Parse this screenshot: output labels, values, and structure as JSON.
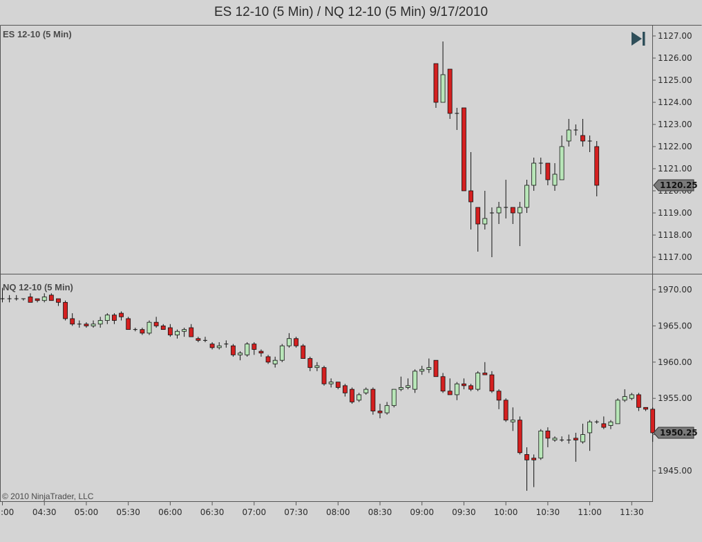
{
  "window": {
    "title": "ES 12-10 (5 Min) / NQ 12-10 (5 Min)  9/17/2010",
    "copyright": "© 2010 NinjaTrader, LLC",
    "go_to_end_icon": "skip-to-end-icon"
  },
  "colors": {
    "background": "#d4d4d4",
    "up": "#b8e6b8",
    "down": "#d42020",
    "wick": "#111111",
    "frame": "#555555"
  },
  "chart_data": [
    {
      "type": "candlestick",
      "panel_label": "ES 12-10 (5 Min)",
      "last_price": "1120.25",
      "ylim": [
        1116.5,
        1127.5
      ],
      "yticks": [
        "1117.00",
        "1118.00",
        "1119.00",
        "1120.00",
        "1121.00",
        "1122.00",
        "1123.00",
        "1124.00",
        "1125.00",
        "1126.00",
        "1127.00"
      ],
      "first_bar_index": 62,
      "bars": [
        [
          1125.75,
          1125.75,
          1123.75,
          1124.0
        ],
        [
          1124.0,
          1126.75,
          1124.0,
          1125.25
        ],
        [
          1125.5,
          1125.5,
          1123.25,
          1123.5
        ],
        [
          1123.5,
          1123.75,
          1122.75,
          1123.5
        ],
        [
          1123.75,
          1123.75,
          1120.0,
          1120.0
        ],
        [
          1120.0,
          1121.75,
          1118.25,
          1119.5
        ],
        [
          1119.25,
          1119.25,
          1117.25,
          1118.5
        ],
        [
          1118.5,
          1120.0,
          1118.25,
          1118.75
        ],
        [
          1119.0,
          1119.25,
          1117.0,
          1119.0
        ],
        [
          1119.0,
          1119.5,
          1118.5,
          1119.25
        ],
        [
          1119.25,
          1120.5,
          1118.75,
          1119.25
        ],
        [
          1119.25,
          1119.25,
          1118.5,
          1119.0
        ],
        [
          1119.0,
          1119.5,
          1117.5,
          1119.25
        ],
        [
          1119.25,
          1120.5,
          1119.0,
          1120.25
        ],
        [
          1120.25,
          1121.5,
          1120.0,
          1121.25
        ],
        [
          1121.25,
          1121.5,
          1120.75,
          1121.25
        ],
        [
          1121.25,
          1121.25,
          1120.25,
          1120.5
        ],
        [
          1120.25,
          1121.25,
          1120.0,
          1120.75
        ],
        [
          1120.5,
          1122.5,
          1120.5,
          1122.0
        ],
        [
          1122.25,
          1123.25,
          1122.0,
          1122.75
        ],
        [
          1122.75,
          1123.0,
          1122.5,
          1122.75
        ],
        [
          1122.5,
          1123.25,
          1122.0,
          1122.25
        ],
        [
          1122.25,
          1122.5,
          1121.75,
          1122.25
        ],
        [
          1122.0,
          1122.25,
          1119.75,
          1120.25
        ]
      ]
    },
    {
      "type": "candlestick",
      "panel_label": "NQ 12-10 (5 Min)",
      "last_price": "1950.25",
      "ylim": [
        1941.5,
        1971.0
      ],
      "yticks": [
        "1945.00",
        "1950.00",
        "1955.00",
        "1960.00",
        "1965.00",
        "1970.00"
      ],
      "first_bar_index": 0,
      "bars": [
        [
          1968.75,
          1970.25,
          1968.25,
          1968.75
        ],
        [
          1968.75,
          1969.25,
          1968.25,
          1968.75
        ],
        [
          1968.75,
          1969.25,
          1968.5,
          1968.75
        ],
        [
          1968.75,
          1968.75,
          1968.5,
          1968.75
        ],
        [
          1969.0,
          1969.5,
          1968.25,
          1968.25
        ],
        [
          1968.75,
          1968.75,
          1968.25,
          1968.5
        ],
        [
          1968.5,
          1969.5,
          1968.25,
          1969.0
        ],
        [
          1969.25,
          1969.5,
          1968.5,
          1968.5
        ],
        [
          1968.75,
          1968.75,
          1967.75,
          1968.25
        ],
        [
          1968.25,
          1968.5,
          1965.75,
          1966.0
        ],
        [
          1966.0,
          1966.75,
          1965.0,
          1965.25
        ],
        [
          1965.25,
          1965.75,
          1964.75,
          1965.25
        ],
        [
          1965.25,
          1965.5,
          1964.75,
          1965.0
        ],
        [
          1965.0,
          1965.75,
          1964.75,
          1965.25
        ],
        [
          1965.25,
          1966.25,
          1964.75,
          1965.75
        ],
        [
          1965.75,
          1966.75,
          1965.25,
          1966.5
        ],
        [
          1966.5,
          1966.75,
          1965.25,
          1965.75
        ],
        [
          1966.75,
          1967.0,
          1965.75,
          1966.25
        ],
        [
          1966.0,
          1966.25,
          1964.5,
          1964.5
        ],
        [
          1964.5,
          1964.75,
          1964.25,
          1964.5
        ],
        [
          1964.5,
          1964.75,
          1963.75,
          1964.0
        ],
        [
          1964.0,
          1965.75,
          1963.75,
          1965.5
        ],
        [
          1965.5,
          1966.25,
          1964.75,
          1965.0
        ],
        [
          1965.0,
          1965.25,
          1964.5,
          1964.5
        ],
        [
          1964.75,
          1965.25,
          1963.5,
          1963.75
        ],
        [
          1963.75,
          1964.5,
          1963.25,
          1964.25
        ],
        [
          1964.25,
          1964.75,
          1963.5,
          1964.5
        ],
        [
          1964.75,
          1965.25,
          1963.5,
          1963.5
        ],
        [
          1963.25,
          1963.5,
          1962.75,
          1963.0
        ],
        [
          1963.0,
          1963.5,
          1962.75,
          1963.0
        ],
        [
          1962.5,
          1962.75,
          1961.75,
          1962.0
        ],
        [
          1962.0,
          1962.75,
          1961.75,
          1962.25
        ],
        [
          1962.5,
          1963.0,
          1962.0,
          1962.5
        ],
        [
          1962.25,
          1962.5,
          1960.75,
          1961.0
        ],
        [
          1961.0,
          1961.5,
          1960.25,
          1961.25
        ],
        [
          1961.0,
          1962.75,
          1960.75,
          1962.5
        ],
        [
          1962.5,
          1962.75,
          1961.0,
          1961.75
        ],
        [
          1961.5,
          1961.75,
          1960.75,
          1961.25
        ],
        [
          1960.75,
          1961.0,
          1959.75,
          1960.0
        ],
        [
          1959.75,
          1960.75,
          1959.25,
          1960.25
        ],
        [
          1960.25,
          1962.5,
          1960.0,
          1962.25
        ],
        [
          1962.25,
          1964.0,
          1962.0,
          1963.25
        ],
        [
          1963.25,
          1963.5,
          1962.0,
          1962.25
        ],
        [
          1962.25,
          1962.5,
          1960.5,
          1960.5
        ],
        [
          1960.5,
          1960.75,
          1958.75,
          1959.25
        ],
        [
          1959.25,
          1960.0,
          1958.75,
          1959.5
        ],
        [
          1959.25,
          1959.5,
          1956.75,
          1957.0
        ],
        [
          1957.0,
          1957.75,
          1956.5,
          1957.25
        ],
        [
          1957.25,
          1957.25,
          1956.25,
          1956.5
        ],
        [
          1956.75,
          1957.0,
          1955.25,
          1955.75
        ],
        [
          1956.25,
          1956.5,
          1954.25,
          1954.5
        ],
        [
          1954.75,
          1955.75,
          1954.5,
          1955.5
        ],
        [
          1955.75,
          1956.5,
          1955.5,
          1956.25
        ],
        [
          1956.25,
          1956.5,
          1952.75,
          1953.25
        ],
        [
          1953.25,
          1954.25,
          1952.25,
          1953.0
        ],
        [
          1953.0,
          1954.5,
          1952.75,
          1954.0
        ],
        [
          1954.0,
          1956.25,
          1953.75,
          1956.25
        ],
        [
          1956.25,
          1958.0,
          1956.0,
          1956.5
        ],
        [
          1956.5,
          1957.75,
          1956.25,
          1956.75
        ],
        [
          1956.25,
          1959.0,
          1955.75,
          1958.75
        ],
        [
          1958.75,
          1959.5,
          1958.25,
          1959.0
        ],
        [
          1959.0,
          1960.5,
          1958.5,
          1959.25
        ],
        [
          1960.25,
          1960.25,
          1958.0,
          1958.0
        ],
        [
          1958.0,
          1958.5,
          1955.75,
          1956.0
        ],
        [
          1956.0,
          1957.75,
          1955.5,
          1955.5
        ],
        [
          1955.5,
          1957.25,
          1954.75,
          1957.0
        ],
        [
          1957.0,
          1957.75,
          1956.25,
          1956.75
        ],
        [
          1956.75,
          1957.0,
          1956.0,
          1956.25
        ],
        [
          1956.25,
          1958.75,
          1956.0,
          1958.5
        ],
        [
          1958.5,
          1960.0,
          1958.25,
          1958.25
        ],
        [
          1958.25,
          1958.75,
          1955.75,
          1956.0
        ],
        [
          1956.0,
          1956.25,
          1953.5,
          1954.75
        ],
        [
          1954.75,
          1955.0,
          1951.75,
          1952.0
        ],
        [
          1951.75,
          1953.75,
          1950.5,
          1952.0
        ],
        [
          1952.0,
          1952.5,
          1947.25,
          1947.5
        ],
        [
          1947.25,
          1948.25,
          1942.25,
          1946.5
        ],
        [
          1946.75,
          1947.25,
          1942.75,
          1946.5
        ],
        [
          1946.75,
          1950.75,
          1946.5,
          1950.5
        ],
        [
          1950.5,
          1951.0,
          1948.25,
          1949.5
        ],
        [
          1949.25,
          1949.75,
          1949.0,
          1949.5
        ],
        [
          1949.25,
          1949.75,
          1949.0,
          1949.25
        ],
        [
          1949.25,
          1950.0,
          1948.75,
          1949.25
        ],
        [
          1949.5,
          1950.25,
          1946.25,
          1949.25
        ],
        [
          1949.0,
          1951.5,
          1948.75,
          1950.0
        ],
        [
          1950.25,
          1952.0,
          1947.75,
          1951.75
        ],
        [
          1951.75,
          1952.0,
          1951.5,
          1951.75
        ],
        [
          1951.5,
          1952.5,
          1950.75,
          1951.0
        ],
        [
          1951.25,
          1952.0,
          1950.75,
          1951.75
        ],
        [
          1951.5,
          1955.0,
          1951.5,
          1954.75
        ],
        [
          1954.75,
          1956.25,
          1954.5,
          1955.25
        ],
        [
          1955.0,
          1955.75,
          1954.75,
          1955.5
        ],
        [
          1955.5,
          1955.75,
          1953.25,
          1953.75
        ],
        [
          1953.75,
          1953.75,
          1953.25,
          1953.5
        ],
        [
          1953.5,
          1953.75,
          1949.0,
          1950.25
        ]
      ]
    }
  ],
  "x_axis": {
    "ticks": [
      {
        "label": ":00",
        "bar": 0
      },
      {
        "label": "04:30",
        "bar": 6
      },
      {
        "label": "05:00",
        "bar": 12
      },
      {
        "label": "05:30",
        "bar": 18
      },
      {
        "label": "06:00",
        "bar": 24
      },
      {
        "label": "06:30",
        "bar": 30
      },
      {
        "label": "07:00",
        "bar": 36
      },
      {
        "label": "07:30",
        "bar": 42
      },
      {
        "label": "08:00",
        "bar": 48
      },
      {
        "label": "08:30",
        "bar": 54
      },
      {
        "label": "09:00",
        "bar": 60
      },
      {
        "label": "09:30",
        "bar": 66
      },
      {
        "label": "10:00",
        "bar": 72
      },
      {
        "label": "10:30",
        "bar": 78
      },
      {
        "label": "11:00",
        "bar": 84
      },
      {
        "label": "11:30",
        "bar": 90
      }
    ]
  }
}
